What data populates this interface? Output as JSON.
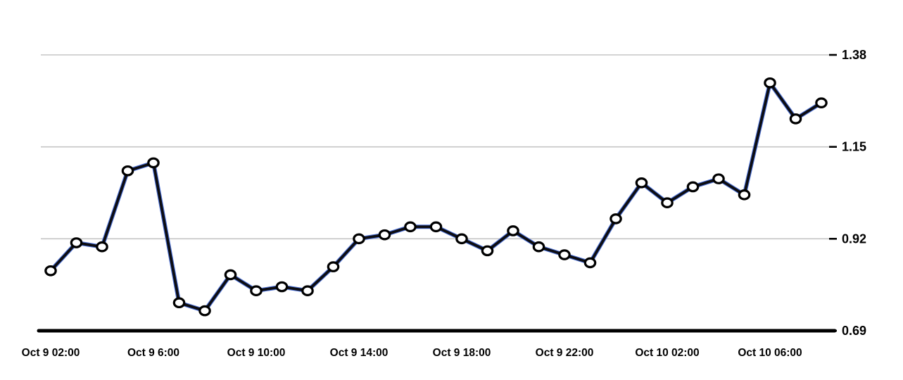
{
  "chart": {
    "colors": {
      "background": "#ffffff",
      "grid": "#c6c6c6",
      "axis": "#000000",
      "line": "#0d0d12",
      "line_accent": "#4a6fd4",
      "marker_fill": "#ffffff",
      "marker_stroke": "#000000",
      "label": "#000000"
    }
  },
  "chart_data": {
    "type": "line",
    "title": "",
    "xlabel": "",
    "ylabel": "",
    "grid": "horizontal-only",
    "legend_position": "none",
    "x": [
      "Oct 9 02:00",
      "Oct 9 03:00",
      "Oct 9 04:00",
      "Oct 9 05:00",
      "Oct 9 06:00",
      "Oct 9 07:00",
      "Oct 9 08:00",
      "Oct 9 09:00",
      "Oct 9 10:00",
      "Oct 9 11:00",
      "Oct 9 12:00",
      "Oct 9 13:00",
      "Oct 9 14:00",
      "Oct 9 15:00",
      "Oct 9 16:00",
      "Oct 9 17:00",
      "Oct 9 18:00",
      "Oct 9 19:00",
      "Oct 9 20:00",
      "Oct 9 21:00",
      "Oct 9 22:00",
      "Oct 9 23:00",
      "Oct 10 00:00",
      "Oct 10 01:00",
      "Oct 10 02:00",
      "Oct 10 03:00",
      "Oct 10 04:00",
      "Oct 10 05:00",
      "Oct 10 06:00",
      "Oct 10 07:00",
      "Oct 10 08:00"
    ],
    "values": [
      0.84,
      0.91,
      0.9,
      1.09,
      1.11,
      0.76,
      0.74,
      0.83,
      0.79,
      0.8,
      0.79,
      0.85,
      0.92,
      0.93,
      0.95,
      0.95,
      0.92,
      0.89,
      0.94,
      0.9,
      0.88,
      0.86,
      0.97,
      1.06,
      1.01,
      1.05,
      1.07,
      1.03,
      1.31,
      1.22,
      1.26
    ],
    "x_tick_indices": [
      0,
      4,
      8,
      12,
      16,
      20,
      24,
      28
    ],
    "x_tick_labels": [
      "Oct 9 02:00",
      "Oct 9 6:00",
      "Oct 9 10:00",
      "Oct 9 14:00",
      "Oct 9 18:00",
      "Oct 9 22:00",
      "Oct 10 02:00",
      "Oct 10 06:00"
    ],
    "y_ticks": [
      1.38,
      1.15,
      0.92,
      0.69
    ],
    "y_tick_labels": [
      "1.38",
      "1.15",
      "0.92",
      "0.69"
    ],
    "ylim": [
      0.69,
      1.38
    ],
    "marker": "open-circle"
  }
}
